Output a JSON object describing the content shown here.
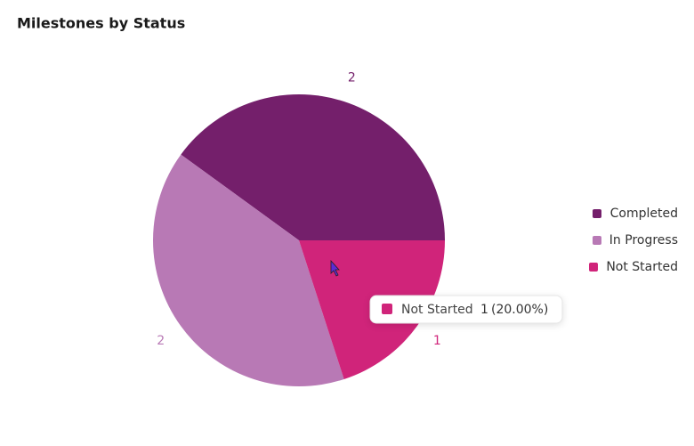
{
  "chart_data": {
    "type": "pie",
    "title": "Milestones by Status",
    "categories": [
      "Completed",
      "In Progress",
      "Not Started"
    ],
    "values": [
      2,
      2,
      1
    ],
    "colors": [
      "#741f6b",
      "#b879b5",
      "#d0247a"
    ],
    "legend": "right",
    "tooltip": {
      "name": "Not Started",
      "value": 1,
      "percent": {
        "value": 20,
        "label": "(20.00%)"
      }
    }
  }
}
